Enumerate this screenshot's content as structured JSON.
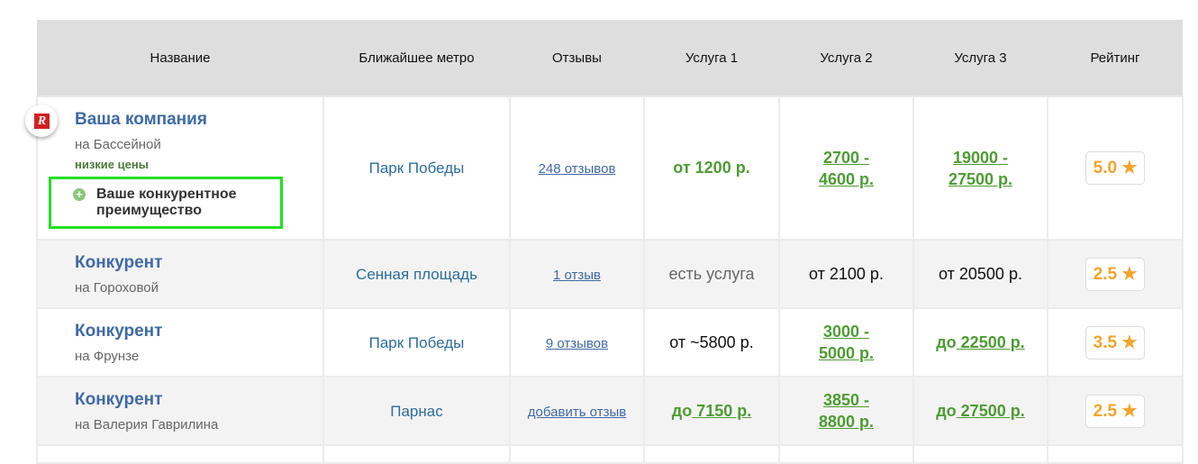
{
  "headers": [
    "Название",
    "Ближайшее метро",
    "Отзывы",
    "Услуга 1",
    "Услуга 2",
    "Услуга 3",
    "Рейтинг"
  ],
  "colors": {
    "name": "#3f6aa6",
    "price_link": "#4d9c33",
    "rating": "#f3a42a",
    "highlight_border": "#22e022"
  },
  "rows": [
    {
      "name": "Ваша компания",
      "address": "на Бассейной",
      "tag": "низкие цены",
      "advantage": "Ваше конкурентное преимущество",
      "metro": "Парк Победы",
      "reviews": "248 отзывов",
      "s1": {
        "prefix": "",
        "text": "от 1200 р.",
        "style": "green"
      },
      "s2": {
        "prefix": "",
        "text": "2700 - 4600 р.",
        "style": "greenlink"
      },
      "s3": {
        "prefix": "",
        "text": "19000 - 27500 р.",
        "style": "greenlink"
      },
      "rating": "5.0"
    },
    {
      "name": "Конкурент",
      "address": "на Гороховой",
      "metro": "Сенная площадь",
      "reviews": "1 отзыв",
      "s1": {
        "prefix": "",
        "text": "есть услуга",
        "style": "grey"
      },
      "s2": {
        "prefix": "",
        "text": "от 2100 р.",
        "style": "plain"
      },
      "s3": {
        "prefix": "",
        "text": "от 20500 р.",
        "style": "plain"
      },
      "rating": "2.5"
    },
    {
      "name": "Конкурент",
      "address": "на Фрунзе",
      "metro": "Парк Победы",
      "reviews": "9 отзывов",
      "s1": {
        "prefix": "",
        "text": "от ~5800 р.",
        "style": "plain"
      },
      "s2": {
        "prefix": "",
        "text": "3000 - 5000 р.",
        "style": "greenlink"
      },
      "s3": {
        "prefix": "до",
        "text": " 22500 р.",
        "style": "greenlink"
      },
      "rating": "3.5"
    },
    {
      "name": "Конкурент",
      "address": "на Валерия Гаврилина",
      "metro": "Парнас",
      "reviews": "добавить отзыв",
      "s1": {
        "prefix": "до",
        "text": " 7150 р.",
        "style": "greenlink"
      },
      "s2": {
        "prefix": "",
        "text": "3850 - 8800 р.",
        "style": "greenlink"
      },
      "s3": {
        "prefix": "до",
        "text": " 27500 р.",
        "style": "greenlink"
      },
      "rating": "2.5"
    }
  ]
}
